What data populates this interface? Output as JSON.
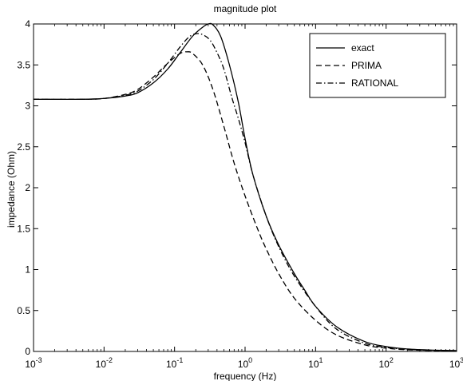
{
  "chart_data": {
    "type": "line",
    "title": "magnitude plot",
    "xlabel": "frequency (Hz)",
    "ylabel": "impedance (Ohm)",
    "x_scale": "log",
    "xlim": [
      0.001,
      1000
    ],
    "ylim": [
      0,
      4
    ],
    "x_ticks": [
      0.001,
      0.01,
      0.1,
      1,
      10,
      100,
      1000
    ],
    "x_tick_labels": [
      {
        "base": "10",
        "exp": "-3"
      },
      {
        "base": "10",
        "exp": "-2"
      },
      {
        "base": "10",
        "exp": "-1"
      },
      {
        "base": "10",
        "exp": "0"
      },
      {
        "base": "10",
        "exp": "1"
      },
      {
        "base": "10",
        "exp": "2"
      },
      {
        "base": "10",
        "exp": "3"
      }
    ],
    "y_ticks": [
      0,
      0.5,
      1,
      1.5,
      2,
      2.5,
      3,
      3.5,
      4
    ],
    "y_tick_labels": [
      "0",
      "0.5",
      "1",
      "1.5",
      "2",
      "2.5",
      "3",
      "3.5",
      "4"
    ],
    "grid": false,
    "legend_position": "top-right",
    "series": [
      {
        "name": "exact",
        "style": "solid",
        "color": "#000000",
        "x": [
          0.001,
          0.005,
          0.01,
          0.02,
          0.03,
          0.05,
          0.08,
          0.12,
          0.18,
          0.25,
          0.3,
          0.35,
          0.45,
          0.6,
          0.8,
          1.0,
          1.3,
          2.0,
          3.0,
          5.0,
          7.0,
          10,
          20,
          50,
          100,
          200,
          500,
          1000
        ],
        "y": [
          3.08,
          3.08,
          3.09,
          3.12,
          3.16,
          3.28,
          3.45,
          3.65,
          3.85,
          3.96,
          4.0,
          3.99,
          3.85,
          3.5,
          3.05,
          2.6,
          2.15,
          1.65,
          1.3,
          0.95,
          0.75,
          0.55,
          0.3,
          0.12,
          0.06,
          0.03,
          0.015,
          0.01
        ]
      },
      {
        "name": "PRIMA",
        "style": "dashed",
        "color": "#000000",
        "x": [
          0.001,
          0.005,
          0.01,
          0.02,
          0.03,
          0.05,
          0.08,
          0.12,
          0.15,
          0.18,
          0.25,
          0.35,
          0.5,
          0.7,
          1.0,
          1.5,
          2.0,
          3.0,
          5.0,
          10,
          20,
          50,
          100,
          200,
          500,
          1000
        ],
        "y": [
          3.08,
          3.08,
          3.09,
          3.14,
          3.2,
          3.35,
          3.52,
          3.64,
          3.66,
          3.64,
          3.5,
          3.2,
          2.75,
          2.3,
          1.9,
          1.5,
          1.25,
          0.95,
          0.65,
          0.38,
          0.2,
          0.08,
          0.04,
          0.02,
          0.012,
          0.01
        ]
      },
      {
        "name": "RATIONAL",
        "style": "dashdot",
        "color": "#000000",
        "x": [
          0.001,
          0.005,
          0.01,
          0.02,
          0.03,
          0.05,
          0.08,
          0.12,
          0.16,
          0.2,
          0.25,
          0.32,
          0.4,
          0.5,
          0.65,
          0.8,
          1.0,
          1.3,
          2.0,
          3.0,
          5.0,
          10,
          20,
          50,
          100,
          200,
          500,
          1000
        ],
        "y": [
          3.08,
          3.08,
          3.09,
          3.13,
          3.18,
          3.32,
          3.52,
          3.72,
          3.84,
          3.88,
          3.87,
          3.8,
          3.65,
          3.45,
          3.1,
          2.85,
          2.55,
          2.15,
          1.65,
          1.28,
          0.92,
          0.55,
          0.27,
          0.1,
          0.05,
          0.025,
          0.012,
          0.01
        ]
      }
    ]
  }
}
